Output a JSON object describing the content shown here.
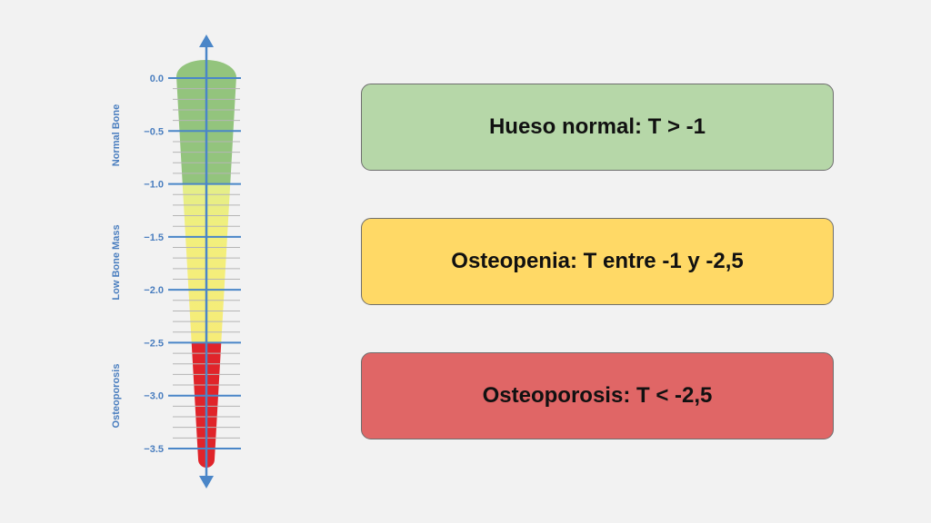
{
  "gauge": {
    "axis_min": -3.5,
    "axis_max": 0.0,
    "tick_labels": [
      "0.0",
      "−0.5",
      "−1.0",
      "−1.5",
      "−2.0",
      "−2.5",
      "−3.0",
      "−3.5"
    ],
    "tick_values": [
      0.0,
      -0.5,
      -1.0,
      -1.5,
      -2.0,
      -2.5,
      -3.0,
      -3.5
    ],
    "zones": [
      {
        "label": "Normal Bone",
        "from": 0.0,
        "to": -1.0,
        "color": "#93c47d"
      },
      {
        "label": "Low Bone Mass",
        "from": -1.0,
        "to": -2.5,
        "color": "#f0ec7c"
      },
      {
        "label": "Osteoporosis",
        "from": -2.5,
        "to": -3.5,
        "color": "#e0242a"
      }
    ],
    "axis_color": "#4a86c8"
  },
  "cards": [
    {
      "text": "Hueso normal: T > -1",
      "color": "#b6d7a8"
    },
    {
      "text": "Osteopenia: T entre -1 y -2,5",
      "color": "#ffd966"
    },
    {
      "text": "Osteoporosis: T < -2,5",
      "color": "#e06666"
    }
  ]
}
